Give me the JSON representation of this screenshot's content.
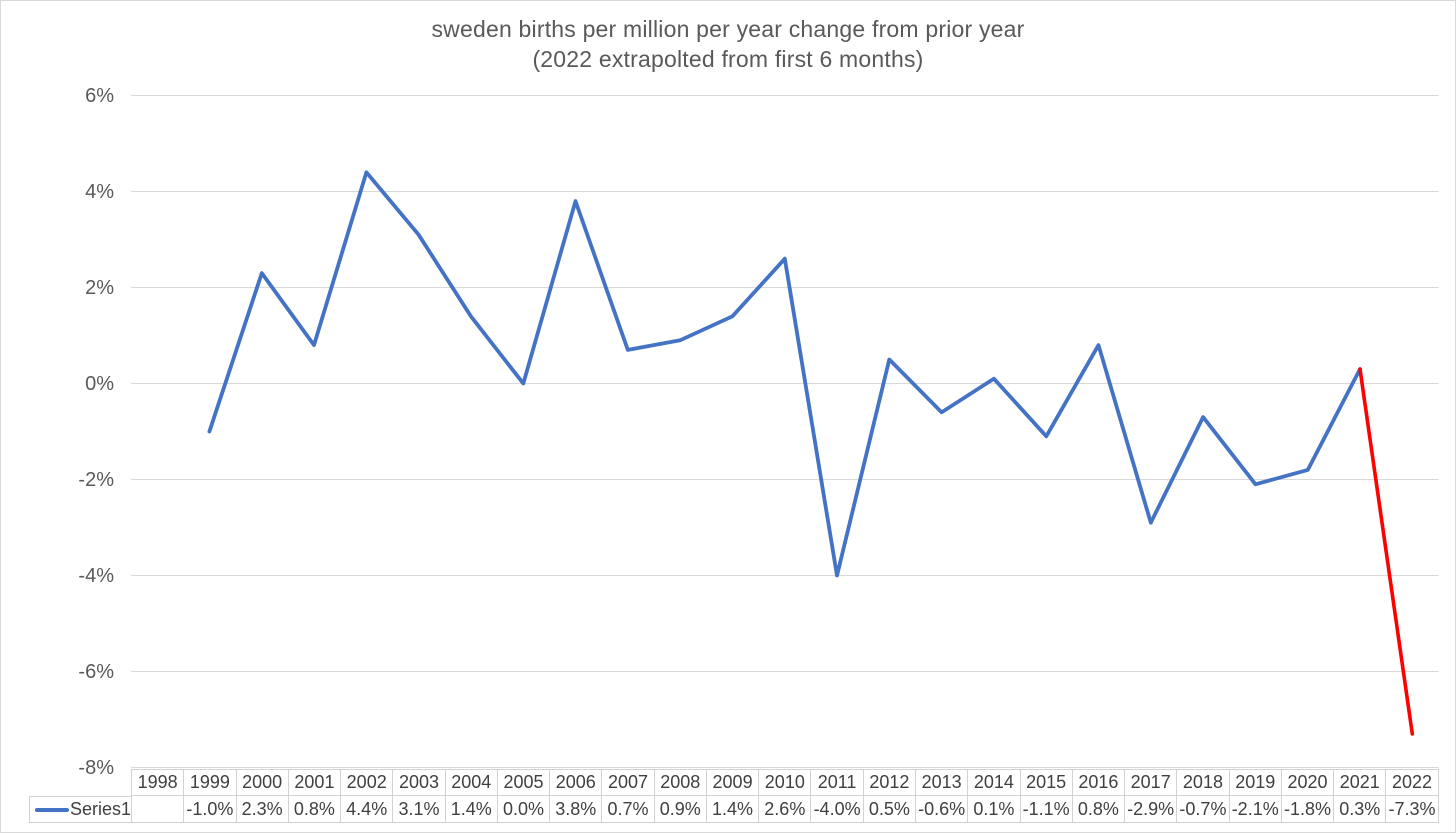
{
  "chart_data": {
    "type": "line",
    "title": "sweden births per million per year change from prior year",
    "subtitle": "(2022 extrapolted from first 6 months)",
    "categories": [
      "1998",
      "1999",
      "2000",
      "2001",
      "2002",
      "2003",
      "2004",
      "2005",
      "2006",
      "2007",
      "2008",
      "2009",
      "2010",
      "2011",
      "2012",
      "2013",
      "2014",
      "2015",
      "2016",
      "2017",
      "2018",
      "2019",
      "2020",
      "2021",
      "2022"
    ],
    "series": [
      {
        "name": "Series1",
        "values": [
          null,
          -1.0,
          2.3,
          0.8,
          4.4,
          3.1,
          1.4,
          0.0,
          3.8,
          0.7,
          0.9,
          1.4,
          2.6,
          -4.0,
          0.5,
          -0.6,
          0.1,
          -1.1,
          0.8,
          -2.9,
          -0.7,
          -2.1,
          -1.8,
          0.3,
          -7.3
        ],
        "values_display": [
          "",
          "-1.0%",
          "2.3%",
          "0.8%",
          "4.4%",
          "3.1%",
          "1.4%",
          "0.0%",
          "3.8%",
          "0.7%",
          "0.9%",
          "1.4%",
          "2.6%",
          "-4.0%",
          "0.5%",
          "-0.6%",
          "0.1%",
          "-1.1%",
          "0.8%",
          "-2.9%",
          "-0.7%",
          "-2.1%",
          "-1.8%",
          "0.3%",
          "-7.3%"
        ]
      }
    ],
    "ylim": [
      -8,
      6
    ],
    "ytick_step": 2,
    "ytick_labels": [
      "6%",
      "4%",
      "2%",
      "0%",
      "-2%",
      "-4%",
      "-6%",
      "-8%"
    ],
    "xlabel": "",
    "ylabel": "",
    "grid": true,
    "legend_position": "data-table-left",
    "colors": {
      "line": "#4472C4",
      "last_segment": "#FF0000",
      "gridline": "#d9d9d9",
      "axis_text": "#595959",
      "table_text": "#404040",
      "table_border": "#d2d2d2"
    }
  }
}
